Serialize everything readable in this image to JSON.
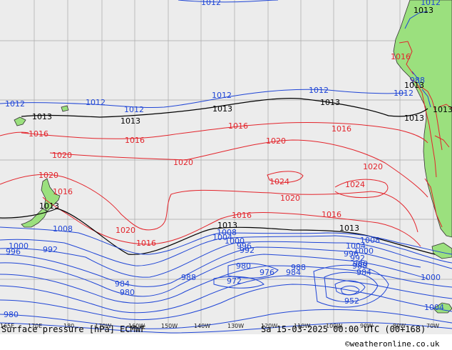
{
  "map": {
    "left_title": "Surface pressure [hPa] ECMWF",
    "right_title": "Sa 15-03-2025 00:00 UTC (00+168)",
    "credit": "©weatheronline.co.uk",
    "longitude_labels": [
      "165E",
      "170E",
      "180",
      "170W",
      "160W",
      "150W",
      "140W",
      "130W",
      "120W",
      "110W",
      "100W",
      "90W",
      "80W",
      "70W"
    ],
    "colors": {
      "ocean": "#ececec",
      "land": "#9be07e",
      "grid": "#a8a8a8",
      "isobar_low": "#1f45d6",
      "isobar_high": "#e3242b",
      "isobar_1013": "#000000"
    },
    "isobar_labels": {
      "blue": [
        "1012",
        "1012",
        "1012",
        "1012",
        "1012",
        "1012",
        "1012",
        "1012",
        "1008",
        "1008",
        "1004",
        "1000",
        "996",
        "992",
        "1000",
        "996",
        "992",
        "988",
        "984",
        "980",
        "976",
        "972",
        "988",
        "984",
        "980",
        "1008",
        "1004",
        "1000",
        "996",
        "992",
        "988",
        "984",
        "980",
        "952",
        "1004",
        "1000",
        "988",
        "980"
      ],
      "red": [
        "1016",
        "1016",
        "1016",
        "1016",
        "1016",
        "1020",
        "1020",
        "1020",
        "1020",
        "1020",
        "1020",
        "1024",
        "1024",
        "1016",
        "1016",
        "1020",
        "1016",
        "1016"
      ],
      "black": [
        "1013",
        "1013",
        "1013",
        "1013",
        "1013",
        "1013",
        "1013",
        "1013",
        "1013",
        "1013",
        "1013"
      ]
    }
  }
}
